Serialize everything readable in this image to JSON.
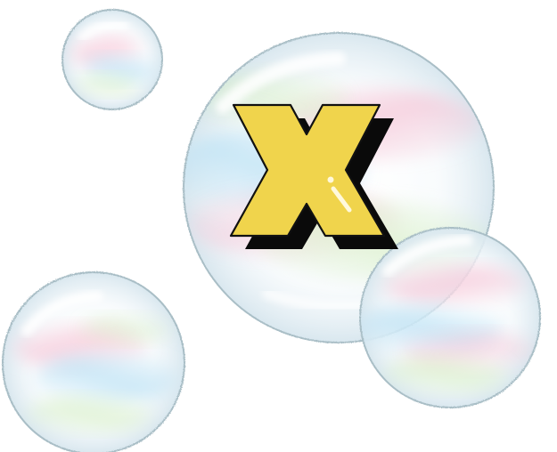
{
  "illustration": {
    "letter": "X",
    "letter_color": "#f0d44c",
    "letter_outline_color": "#111111",
    "letter_shadow_color": "#0a0a0a",
    "letter_highlight_color": "#fff9dc",
    "bubble_outline_color": "#a9bec6",
    "bubble_tints": [
      "#f6c7d8",
      "#bfe3f5",
      "#d8f0c8",
      "#fff7d8"
    ],
    "bubble_count": 4
  }
}
